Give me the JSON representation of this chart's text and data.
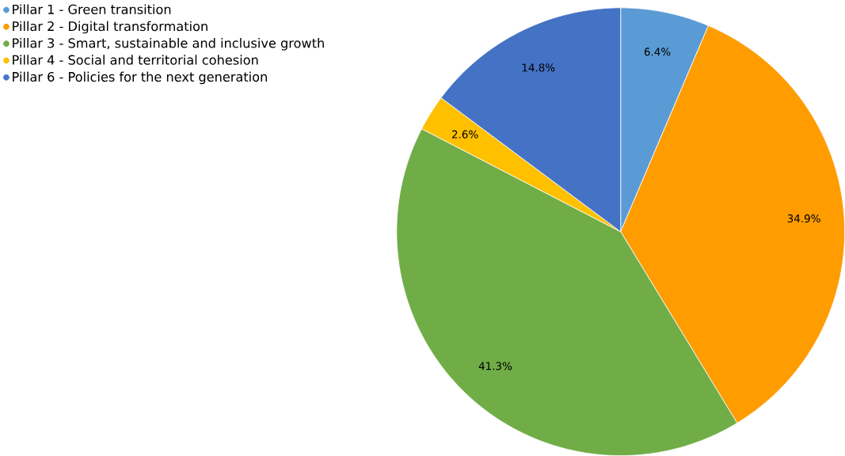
{
  "chart_data": {
    "type": "pie",
    "categories": [
      "Pillar 1 - Green transition",
      "Pillar 2 - Digital transformation",
      "Pillar 3 - Smart, sustainable and inclusive growth",
      "Pillar 4 - Social and territorial cohesion",
      "Pillar 6 - Policies for the next generation"
    ],
    "values": [
      6.4,
      34.9,
      41.3,
      2.6,
      14.8
    ],
    "value_labels": [
      "6.4%",
      "34.9%",
      "41.3%",
      "2.6%",
      "14.8%"
    ],
    "colors": [
      "#5b9bd5",
      "#ff9c00",
      "#70ad47",
      "#ffc000",
      "#4472c4"
    ],
    "legend": "top left"
  }
}
